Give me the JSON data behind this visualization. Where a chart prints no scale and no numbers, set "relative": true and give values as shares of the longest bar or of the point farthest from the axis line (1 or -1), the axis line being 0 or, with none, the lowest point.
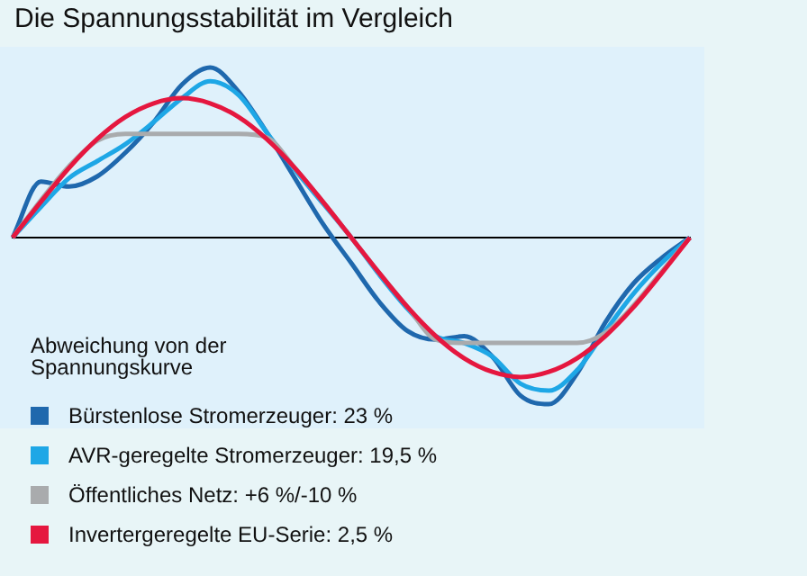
{
  "chart_data": {
    "type": "line",
    "title": "Die Spannungsstabilität im Vergleich",
    "legend_title": "Abweichung von der Spannungskurve",
    "relative": true,
    "legend": "bottom left",
    "grid": false,
    "marker": "none",
    "categories": [
      null,
      null,
      null,
      null,
      null,
      null,
      null,
      null,
      null,
      null,
      null,
      null,
      null,
      null,
      null,
      null,
      null,
      null,
      null,
      null,
      null,
      null,
      null,
      null,
      null
    ],
    "series": [
      {
        "name": "Bürstenlose Stromerzeuger: 23 %",
        "color": "#1f68ad",
        "values": [
          0,
          0.33,
          0.3,
          0.36,
          0.5,
          0.68,
          0.9,
          1.0,
          0.86,
          0.62,
          0.35,
          0.08,
          -0.15,
          -0.38,
          -0.55,
          -0.6,
          -0.58,
          -0.7,
          -0.93,
          -0.98,
          -0.8,
          -0.5,
          -0.27,
          -0.12,
          0
        ]
      },
      {
        "name": "AVR-geregelte Stromerzeuger: 19,5 %",
        "color": "#1ea7e6",
        "values": [
          0,
          0.18,
          0.35,
          0.45,
          0.55,
          0.68,
          0.82,
          0.92,
          0.84,
          0.62,
          0.4,
          0.2,
          0,
          -0.22,
          -0.42,
          -0.58,
          -0.62,
          -0.7,
          -0.86,
          -0.9,
          -0.78,
          -0.55,
          -0.33,
          -0.15,
          0
        ]
      },
      {
        "name": "Öffentliches Netz: +6 %/-10 %",
        "color": "#a9abad",
        "values": [
          0,
          0.22,
          0.42,
          0.57,
          0.61,
          0.61,
          0.61,
          0.61,
          0.61,
          0.59,
          0.41,
          0.21,
          0,
          -0.21,
          -0.41,
          -0.6,
          -0.62,
          -0.62,
          -0.62,
          -0.62,
          -0.62,
          -0.56,
          -0.4,
          -0.2,
          0
        ]
      },
      {
        "name": "Invertergeregelte EU-Serie: 2,5 %",
        "color": "#e5173f",
        "values": [
          0,
          0.21,
          0.41,
          0.58,
          0.71,
          0.79,
          0.82,
          0.79,
          0.71,
          0.58,
          0.41,
          0.21,
          0,
          -0.21,
          -0.41,
          -0.58,
          -0.71,
          -0.79,
          -0.82,
          -0.79,
          -0.71,
          -0.58,
          -0.41,
          -0.21,
          0
        ]
      }
    ]
  }
}
